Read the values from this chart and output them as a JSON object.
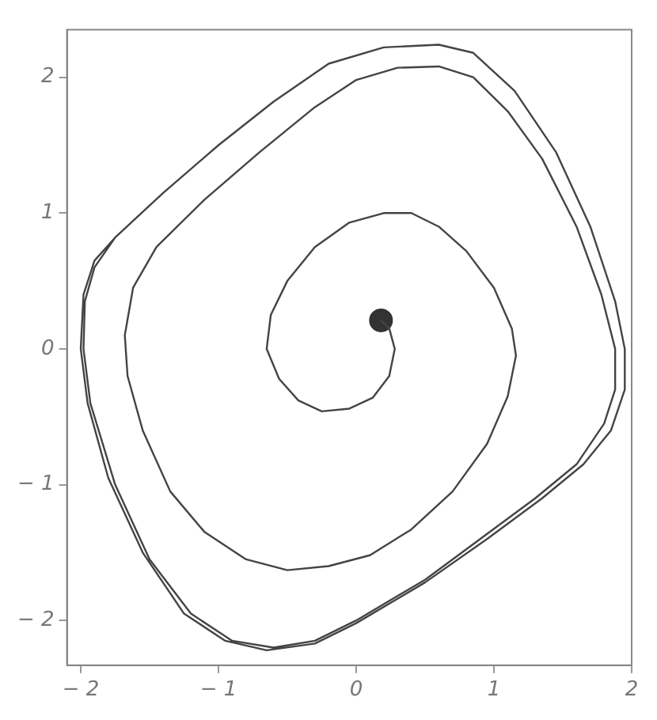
{
  "chart_data": {
    "type": "line",
    "xlim": [
      -2.1,
      2.0
    ],
    "ylim": [
      -2.33,
      2.35
    ],
    "xticks": [
      -2,
      -1,
      0,
      1,
      2
    ],
    "yticks": [
      -2,
      -1,
      0,
      1,
      2
    ],
    "grid": false,
    "legend": false,
    "series": [
      {
        "type": "line",
        "color": "#444444",
        "marker": "none",
        "x": [
          0.18,
          0.24,
          0.28,
          0.24,
          0.12,
          -0.05,
          -0.25,
          -0.42,
          -0.56,
          -0.65,
          -0.62,
          -0.5,
          -0.3,
          -0.05,
          0.2,
          0.4,
          0.6,
          0.8,
          1.0,
          1.13,
          1.16,
          1.1,
          0.95,
          0.7,
          0.4,
          0.1,
          -0.2,
          -0.5,
          -0.8,
          -1.1,
          -1.35,
          -1.55,
          -1.66,
          -1.68,
          -1.62,
          -1.45,
          -1.1,
          -0.7,
          -0.3,
          0.0,
          0.3,
          0.6,
          0.85,
          1.1,
          1.35,
          1.6,
          1.78,
          1.88,
          1.88,
          1.8,
          1.6,
          1.3,
          0.9,
          0.5,
          0.0,
          -0.3,
          -0.6,
          -0.9,
          -1.2,
          -1.5,
          -1.75,
          -1.93,
          -1.98,
          -1.97,
          -1.9,
          -1.75,
          -1.4,
          -1.0,
          -0.6,
          -0.2,
          0.2,
          0.6,
          0.85,
          1.15,
          1.45,
          1.7,
          1.88,
          1.95,
          1.95,
          1.85,
          1.65,
          1.35,
          0.95,
          0.5,
          0.0,
          -0.3,
          -0.65,
          -0.95,
          -1.25,
          -1.55,
          -1.8,
          -1.95,
          -2.0,
          -1.98,
          -1.9,
          -1.75
        ],
        "values": [
          0.21,
          0.15,
          0.0,
          -0.2,
          -0.36,
          -0.44,
          -0.46,
          -0.38,
          -0.22,
          0.0,
          0.25,
          0.5,
          0.75,
          0.93,
          1.0,
          1.0,
          0.9,
          0.72,
          0.45,
          0.15,
          -0.05,
          -0.35,
          -0.7,
          -1.05,
          -1.33,
          -1.52,
          -1.6,
          -1.63,
          -1.55,
          -1.35,
          -1.05,
          -0.6,
          -0.2,
          0.1,
          0.45,
          0.75,
          1.1,
          1.45,
          1.78,
          1.98,
          2.07,
          2.08,
          2.0,
          1.75,
          1.4,
          0.9,
          0.4,
          0.0,
          -0.3,
          -0.55,
          -0.85,
          -1.1,
          -1.4,
          -1.7,
          -2.0,
          -2.15,
          -2.2,
          -2.15,
          -1.95,
          -1.55,
          -1.0,
          -0.4,
          0.0,
          0.35,
          0.6,
          0.82,
          1.15,
          1.5,
          1.82,
          2.1,
          2.22,
          2.24,
          2.18,
          1.9,
          1.45,
          0.9,
          0.35,
          0.0,
          -0.3,
          -0.6,
          -0.85,
          -1.1,
          -1.4,
          -1.72,
          -2.02,
          -2.17,
          -2.22,
          -2.15,
          -1.95,
          -1.5,
          -0.95,
          -0.4,
          0.0,
          0.4,
          0.65,
          0.82
        ]
      },
      {
        "type": "scatter",
        "color": "#333333",
        "marker": "circle",
        "x": [
          0.18
        ],
        "values": [
          0.21
        ]
      }
    ]
  }
}
